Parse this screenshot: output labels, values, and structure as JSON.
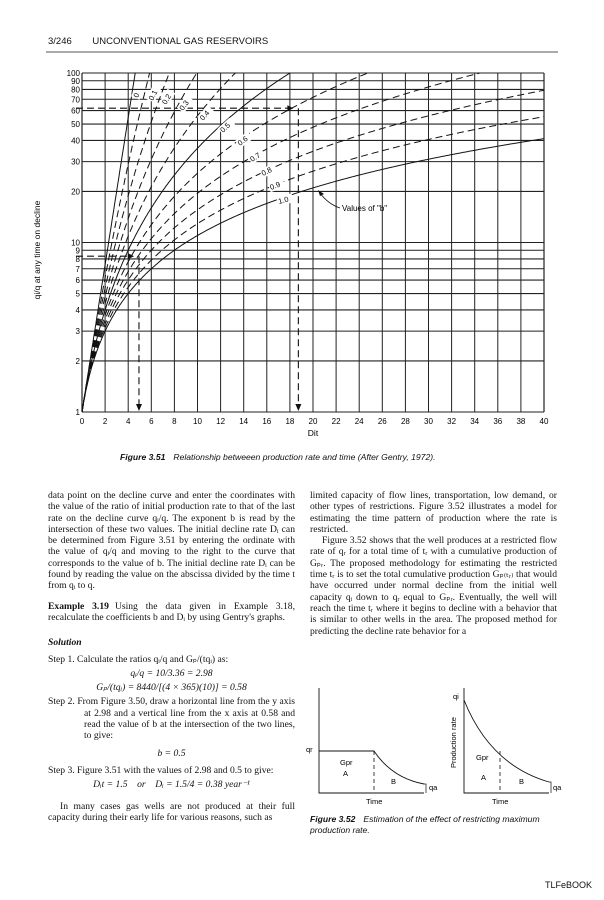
{
  "header": {
    "page": "3/246",
    "title": "UNCONVENTIONAL GAS RESERVOIRS"
  },
  "figure_351": {
    "caption_num": "Figure 3.51",
    "caption_text": "Relationship betweeen production rate and time (After Gentry, 1972).",
    "annotation": "Values of \"b\""
  },
  "chart_data": {
    "type": "line",
    "title": "",
    "xlabel": "Dit",
    "ylabel": "qi/q at any time on decline",
    "xlim": [
      0,
      40
    ],
    "ylim": [
      1,
      100
    ],
    "yscale": "log",
    "grid": true,
    "x_ticks": [
      "0",
      "2",
      "4",
      "6",
      "8",
      "10",
      "12",
      "14",
      "16",
      "18",
      "20",
      "22",
      "24",
      "26",
      "28",
      "30",
      "32",
      "34",
      "36",
      "38",
      "40"
    ],
    "y_ticks": [
      "1",
      "2",
      "3",
      "4",
      "5",
      "6",
      "7",
      "8",
      "9",
      "10",
      "20",
      "30",
      "40",
      "50",
      "60",
      "70",
      "80",
      "90",
      "100"
    ],
    "series": [
      {
        "name": "0",
        "b": 0,
        "style": "solid",
        "points": [
          [
            0,
            1
          ],
          [
            2,
            7.4
          ],
          [
            4,
            54.6
          ],
          [
            4.6,
            100
          ]
        ]
      },
      {
        "name": "0.1",
        "b": 0.1,
        "style": "dashed",
        "points": [
          [
            0,
            1
          ],
          [
            2,
            6.2
          ],
          [
            4,
            28.9
          ],
          [
            5,
            57.7
          ],
          [
            5.85,
            100
          ]
        ]
      },
      {
        "name": "0.2",
        "b": 0.2,
        "style": "dashed",
        "points": [
          [
            0,
            1
          ],
          [
            2,
            5.4
          ],
          [
            4,
            18.9
          ],
          [
            6,
            51.5
          ],
          [
            7.56,
            100
          ]
        ]
      },
      {
        "name": "0.3",
        "b": 0.3,
        "style": "dashed",
        "points": [
          [
            0,
            1
          ],
          [
            2,
            4.8
          ],
          [
            4,
            13.8
          ],
          [
            6,
            30.9
          ],
          [
            8,
            59.1
          ],
          [
            9.95,
            100
          ]
        ]
      },
      {
        "name": "0.4",
        "b": 0.4,
        "style": "dashed",
        "points": [
          [
            0,
            1
          ],
          [
            2,
            4.35
          ],
          [
            4,
            10.9
          ],
          [
            8,
            36.2
          ],
          [
            12,
            81
          ],
          [
            13.3,
            100
          ]
        ]
      },
      {
        "name": "0.5",
        "b": 0.5,
        "style": "solid",
        "points": [
          [
            0,
            1
          ],
          [
            2,
            4
          ],
          [
            6,
            16
          ],
          [
            10,
            36
          ],
          [
            14,
            64
          ],
          [
            18,
            100
          ]
        ]
      },
      {
        "name": "0.6",
        "b": 0.6,
        "style": "dashed",
        "points": [
          [
            0,
            1
          ],
          [
            2,
            3.7
          ],
          [
            10,
            25.6
          ],
          [
            20,
            71.9
          ],
          [
            24.75,
            100
          ]
        ]
      },
      {
        "name": "0.7",
        "b": 0.7,
        "style": "dashed",
        "points": [
          [
            0,
            1
          ],
          [
            2,
            3.5
          ],
          [
            10,
            19.5
          ],
          [
            20,
            47.9
          ],
          [
            30,
            82.8
          ],
          [
            34.5,
            100
          ]
        ]
      },
      {
        "name": "0.8",
        "b": 0.8,
        "style": "dashed",
        "points": [
          [
            0,
            1
          ],
          [
            2,
            3.3
          ],
          [
            10,
            15.6
          ],
          [
            20,
            34.5
          ],
          [
            30,
            55.9
          ],
          [
            40,
            79.1
          ]
        ]
      },
      {
        "name": "0.9",
        "b": 0.9,
        "style": "dashed",
        "points": [
          [
            0,
            1
          ],
          [
            2,
            3.1
          ],
          [
            10,
            12.9
          ],
          [
            20,
            26.3
          ],
          [
            30,
            40.5
          ],
          [
            40,
            55.3
          ]
        ]
      },
      {
        "name": "1.0",
        "b": 1.0,
        "style": "solid",
        "points": [
          [
            0,
            1
          ],
          [
            2,
            3
          ],
          [
            10,
            11
          ],
          [
            20,
            21
          ],
          [
            30,
            31
          ],
          [
            40,
            41
          ]
        ]
      }
    ],
    "guides": [
      {
        "y": 62,
        "x": 18.3
      },
      {
        "y": 8.3,
        "x": 4.5
      }
    ]
  },
  "left_col": {
    "p1": "data point on the decline curve and enter the coordinates with the value of the ratio of initial production rate to that of the last rate on the decline curve qᵢ/q. The exponent b is read by the intersection of these two values. The initial decline rate Dᵢ can be determined from Figure 3.51 by entering the ordinate with the value of qᵢ/q and moving to the right to the curve that corresponds to the value of b. The initial decline rate Dᵢ can be found by reading the value on the abscissa divided by the time t from qᵢ to q.",
    "example_label": "Example 3.19",
    "example_text": "Using the data given in Example 3.18, recalculate the coefficients b and Dᵢ by using Gentry's graphs.",
    "solution": "Solution",
    "step1": "Step 1. Calculate the ratios qᵢ/q and Gₚ/(tqᵢ) as:",
    "eq1": "qᵢ/q = 10/3.36 = 2.98",
    "eq2": "Gₚ/(tqᵢ) = 8440/[(4 × 365)(10)] = 0.58",
    "step2": "Step 2. From Figure 3.50, draw a horizontal line from the y axis at 2.98 and a vertical line from the x axis at 0.58 and read the value of b at the intersection of the two lines, to give:",
    "eq3": "b = 0.5",
    "step3": "Step 3. Figure 3.51 with the values of 2.98 and 0.5 to give:",
    "eq4": "Dᵢt = 1.5    or    Dᵢ = 1.5/4 = 0.38 year⁻¹",
    "p2": "In many cases gas wells are not produced at their full capacity during their early life for various reasons, such as"
  },
  "right_col": {
    "p1": "limited capacity of flow lines, transportation, low demand, or other types of restrictions. Figure 3.52 illustrates a model for estimating the time pattern of production where the rate is restricted.",
    "p2": "Figure 3.52 shows that the well produces at a restricted flow rate of qᵣ for a total time of tᵣ with a cumulative production of Gₚᵣ. The proposed methodology for estimating the restricted time tᵣ is to set the total cumulative production Gₚ₍ₜᵣ₎ that would have occurred under normal decline from the initial well capacity qᵢ down to qᵣ equal to Gₚᵣ. Eventually, the well will reach the time tᵣ where it begins to decline with a behavior that is similar to other wells in the area. The proposed method for predicting the decline rate behavior for a"
  },
  "figure_352": {
    "caption_num": "Figure 3.52",
    "caption_text": "Estimation of the effect of restricting maximum production rate.",
    "left": {
      "qr": "qr",
      "gpr": "Gpr",
      "a": "A",
      "b": "B",
      "qa": "qa",
      "time": "Time"
    },
    "right": {
      "qi": "qi",
      "ylabel": "Production rate",
      "gpr": "Gpr",
      "a": "A",
      "b": "B",
      "qa": "qa",
      "time": "Time"
    }
  },
  "footer": {
    "text": "TLFeBOOK"
  }
}
